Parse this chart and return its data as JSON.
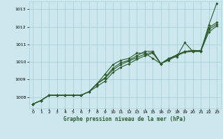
{
  "title": "Graphe pression niveau de la mer (hPa)",
  "background_color": "#cce8ee",
  "grid_color": "#aacfd8",
  "line_color": "#2d5a2d",
  "xlim": [
    -0.5,
    23.5
  ],
  "ylim": [
    1007.35,
    1013.45
  ],
  "yticks": [
    1008,
    1009,
    1010,
    1011,
    1012,
    1013
  ],
  "xticks": [
    0,
    1,
    2,
    3,
    4,
    5,
    6,
    7,
    8,
    9,
    10,
    11,
    12,
    13,
    14,
    15,
    16,
    17,
    18,
    19,
    20,
    21,
    22,
    23
  ],
  "series": [
    [
      1007.6,
      1007.8,
      1008.1,
      1008.1,
      1008.1,
      1008.1,
      1008.1,
      1008.3,
      1008.6,
      1008.9,
      1009.4,
      1009.7,
      1009.9,
      1010.15,
      1010.35,
      1010.5,
      1009.9,
      1010.1,
      1010.35,
      1010.55,
      1010.6,
      1010.6,
      1011.7,
      1012.05
    ],
    [
      1007.6,
      1007.8,
      1008.1,
      1008.1,
      1008.1,
      1008.1,
      1008.1,
      1008.3,
      1008.75,
      1009.05,
      1009.55,
      1009.85,
      1010.05,
      1010.25,
      1010.45,
      1010.55,
      1009.9,
      1010.15,
      1010.4,
      1010.6,
      1010.65,
      1010.65,
      1011.85,
      1012.15
    ],
    [
      1007.6,
      1007.8,
      1008.1,
      1008.1,
      1008.1,
      1008.1,
      1008.1,
      1008.3,
      1008.75,
      1009.1,
      1009.65,
      1009.95,
      1010.1,
      1010.35,
      1010.6,
      1010.6,
      1009.9,
      1010.2,
      1010.4,
      1010.6,
      1010.65,
      1010.65,
      1011.95,
      1012.25
    ],
    [
      1007.6,
      1007.8,
      1008.1,
      1008.1,
      1008.1,
      1008.1,
      1008.1,
      1008.3,
      1008.75,
      1009.3,
      1009.85,
      1010.1,
      1010.2,
      1010.5,
      1010.5,
      1010.2,
      1009.9,
      1010.2,
      1010.3,
      1011.1,
      1010.6,
      1010.6,
      1012.1,
      1013.35
    ]
  ],
  "marker_indices": [
    0,
    1,
    2,
    3,
    4,
    5,
    6,
    7,
    8,
    9,
    10,
    11,
    12,
    13,
    14,
    15,
    16,
    17,
    18,
    19,
    20,
    21,
    22,
    23
  ]
}
